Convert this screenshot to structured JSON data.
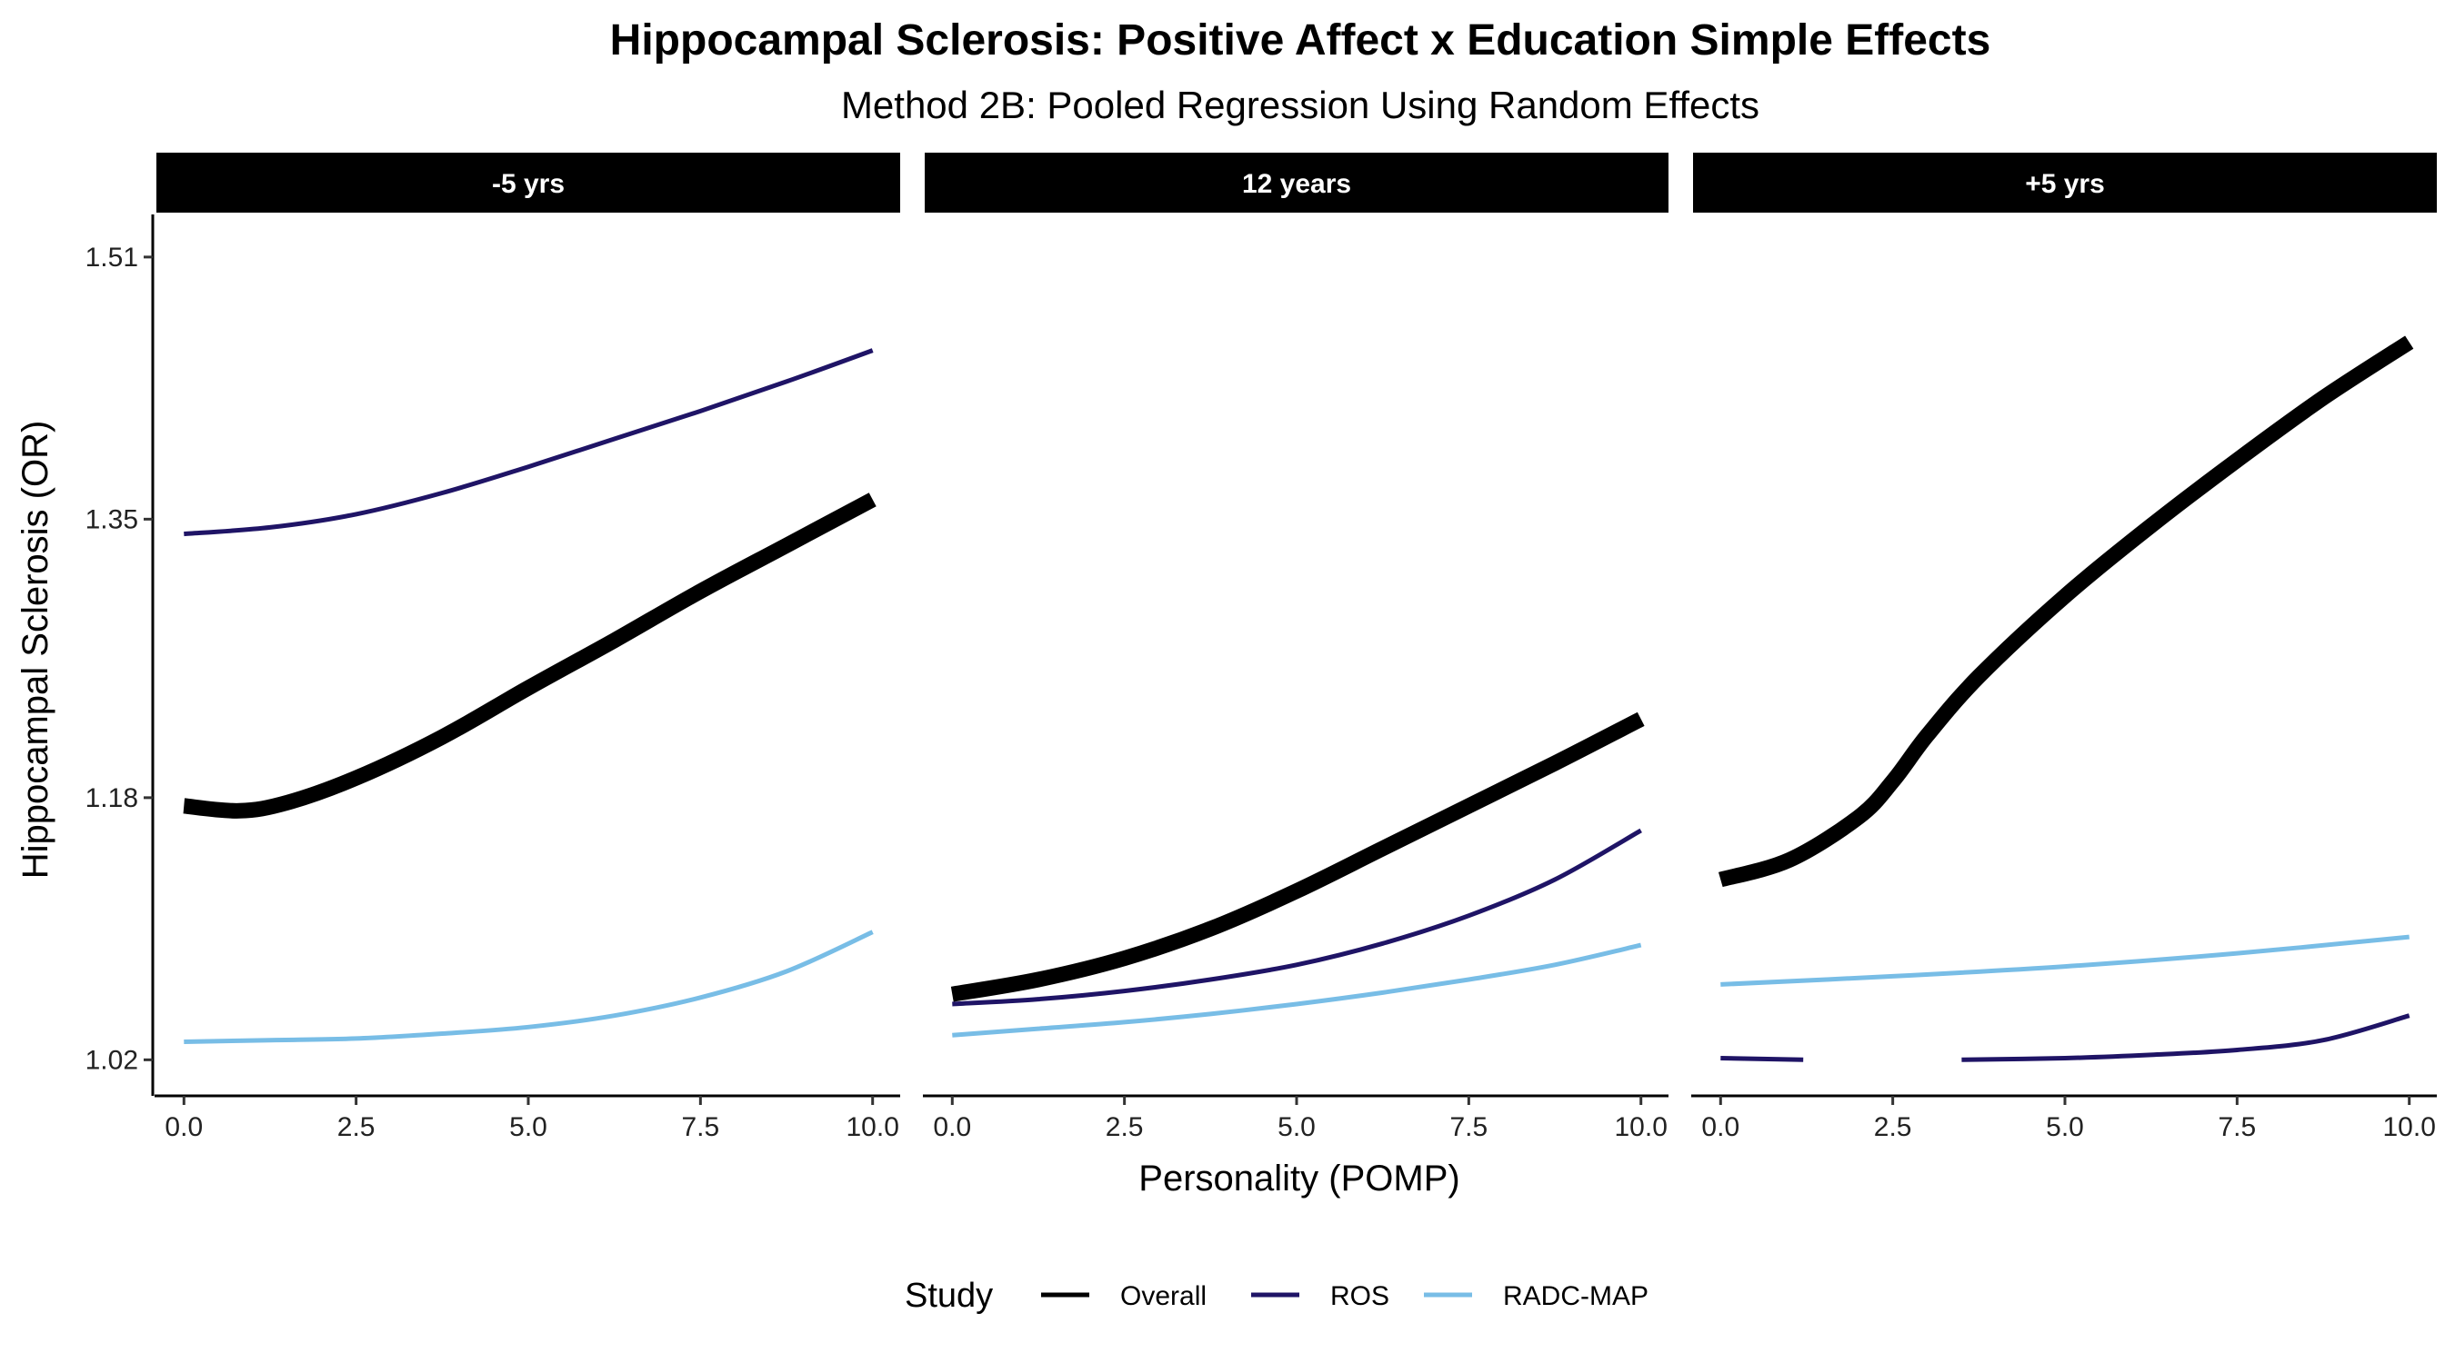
{
  "chart_data": {
    "type": "line",
    "title": "Hippocampal Sclerosis: Positive Affect x Education Simple Effects",
    "subtitle": "Method 2B: Pooled Regression Using Random Effects",
    "xlabel": "Personality (POMP)",
    "ylabel": "Hippocampal Sclerosis (OR)",
    "xlim": [
      -0.4,
      10.4
    ],
    "ylim": [
      0.998,
      1.536
    ],
    "x_ticks": [
      0,
      2.5,
      5,
      7.5,
      10
    ],
    "x_tick_labels": [
      "0.0",
      "2.5",
      "5.0",
      "7.5",
      "10.0"
    ],
    "y_ticks": [
      1.02,
      1.18,
      1.35,
      1.51
    ],
    "y_tick_labels": [
      "1.02",
      "1.18",
      "1.35",
      "1.51"
    ],
    "grid": false,
    "legend": {
      "title": "Study",
      "position": "bottom",
      "entries": [
        {
          "name": "Overall",
          "color": "#000000"
        },
        {
          "name": "ROS",
          "color": "#1f1466"
        },
        {
          "name": "RADC-MAP",
          "color": "#78bde6"
        }
      ]
    },
    "panels": [
      {
        "label": "-5 yrs",
        "series": [
          {
            "name": "Overall",
            "color": "#000000",
            "thick": true,
            "x": [
              0,
              0.8,
              1.5,
              2.5,
              3.75,
              5,
              6.25,
              7.5,
              8.75,
              10
            ],
            "y": [
              1.175,
              1.172,
              1.177,
              1.192,
              1.217,
              1.247,
              1.276,
              1.306,
              1.334,
              1.362
            ]
          },
          {
            "name": "ROS",
            "color": "#1f1466",
            "thick": false,
            "x": [
              0,
              1.25,
              2.5,
              3.75,
              5,
              6.25,
              7.5,
              8.75,
              10
            ],
            "y": [
              1.341,
              1.345,
              1.353,
              1.366,
              1.382,
              1.399,
              1.416,
              1.434,
              1.453
            ]
          },
          {
            "name": "RADC-MAP",
            "color": "#78bde6",
            "thick": false,
            "x": [
              0,
              1.25,
              2.5,
              3.75,
              5,
              6.25,
              7.5,
              8.75,
              10
            ],
            "y": [
              1.031,
              1.032,
              1.033,
              1.036,
              1.04,
              1.047,
              1.058,
              1.074,
              1.098
            ]
          }
        ]
      },
      {
        "label": "12 years",
        "series": [
          {
            "name": "Overall",
            "color": "#000000",
            "thick": true,
            "x": [
              0,
              1.25,
              2.5,
              3.75,
              5,
              6.25,
              7.5,
              8.75,
              10
            ],
            "y": [
              1.06,
              1.069,
              1.082,
              1.1,
              1.123,
              1.149,
              1.175,
              1.201,
              1.228
            ]
          },
          {
            "name": "ROS",
            "color": "#1f1466",
            "thick": false,
            "x": [
              0,
              1.25,
              2.5,
              3.75,
              5,
              6.25,
              7.5,
              8.75,
              10
            ],
            "y": [
              1.054,
              1.057,
              1.062,
              1.069,
              1.078,
              1.091,
              1.108,
              1.13,
              1.16
            ]
          },
          {
            "name": "RADC-MAP",
            "color": "#78bde6",
            "thick": false,
            "x": [
              0,
              1.25,
              2.5,
              3.75,
              5,
              6.25,
              7.5,
              8.75,
              10
            ],
            "y": [
              1.035,
              1.039,
              1.043,
              1.048,
              1.054,
              1.061,
              1.069,
              1.078,
              1.09
            ]
          }
        ]
      },
      {
        "label": "+5 yrs",
        "series": [
          {
            "name": "Overall",
            "color": "#000000",
            "thick": true,
            "x": [
              0,
              1,
              2,
              2.5,
              3,
              3.75,
              5,
              6.25,
              7.5,
              8.75,
              10
            ],
            "y": [
              1.13,
              1.142,
              1.168,
              1.19,
              1.218,
              1.254,
              1.303,
              1.346,
              1.386,
              1.424,
              1.458
            ]
          },
          {
            "name": "ROS",
            "color": "#1f1466",
            "thick": false,
            "segments": [
              {
                "x": [
                  0,
                  1.2
                ],
                "y": [
                  1.021,
                  1.02
                ]
              },
              {
                "x": [
                  3.5,
                  5,
                  6.25,
                  7.5,
                  8.75,
                  10
                ],
                "y": [
                  1.02,
                  1.021,
                  1.023,
                  1.026,
                  1.032,
                  1.047
                ]
              }
            ]
          },
          {
            "name": "RADC-MAP",
            "color": "#78bde6",
            "thick": false,
            "x": [
              0,
              2.5,
              5,
              7.5,
              10
            ],
            "y": [
              1.066,
              1.071,
              1.077,
              1.085,
              1.095
            ]
          }
        ]
      }
    ]
  }
}
